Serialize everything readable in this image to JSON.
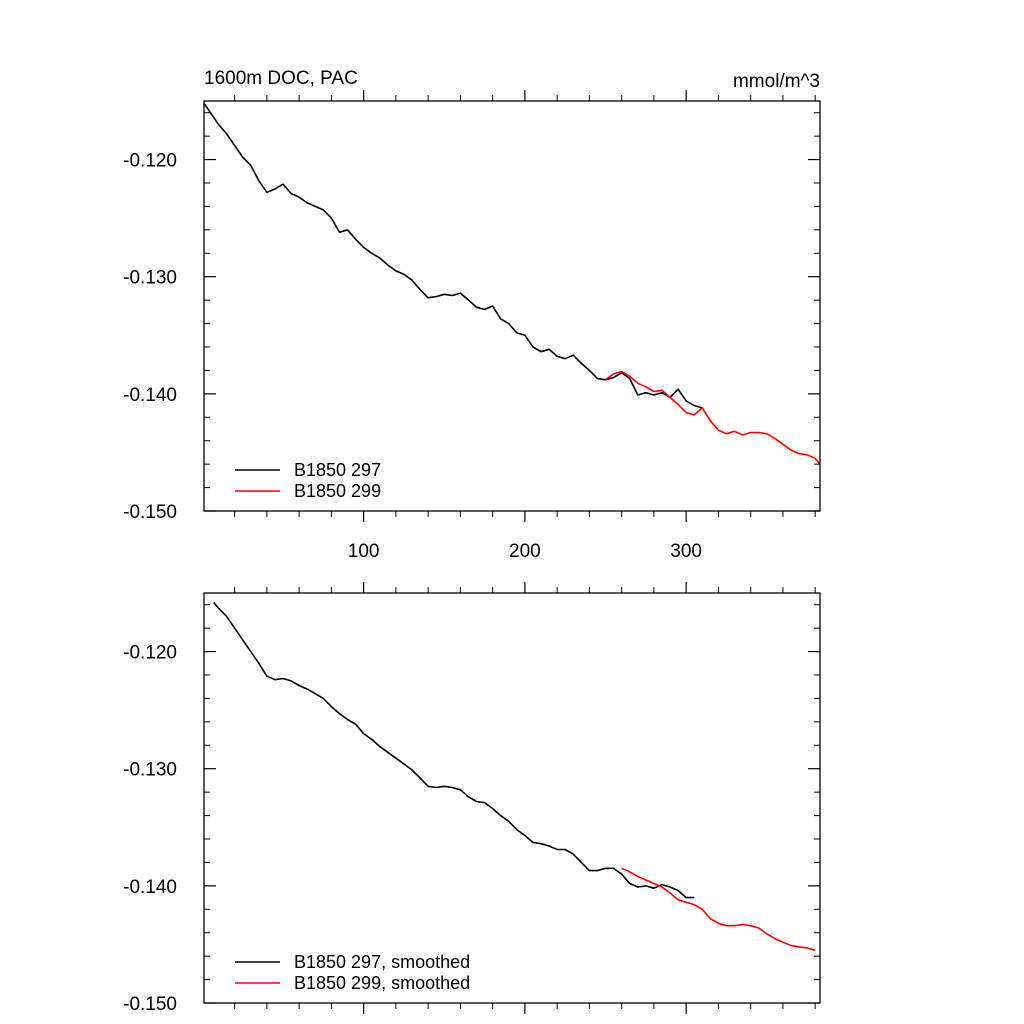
{
  "chart_data": [
    {
      "type": "line",
      "title": "1600m DOC, PAC",
      "units": "mmol/m^3",
      "xlim": [
        1,
        383
      ],
      "ylim": [
        -0.15,
        -0.115
      ],
      "x_tick_labels": [
        "100",
        "200",
        "300"
      ],
      "x_ticks": [
        100,
        200,
        300
      ],
      "y_ticks": [
        -0.12,
        -0.13,
        -0.14,
        -0.15
      ],
      "y_tick_labels": [
        "-0.120",
        "-0.130",
        "-0.140",
        "-0.150"
      ],
      "legend_position": "bottom-left",
      "series": [
        {
          "name": "B1850 297",
          "color": "#000000",
          "x": [
            1,
            5,
            10,
            15,
            20,
            25,
            30,
            35,
            40,
            45,
            50,
            55,
            60,
            65,
            70,
            75,
            80,
            85,
            90,
            95,
            100,
            105,
            110,
            115,
            120,
            125,
            130,
            135,
            140,
            145,
            150,
            155,
            160,
            165,
            170,
            175,
            180,
            185,
            190,
            195,
            200,
            205,
            210,
            215,
            220,
            225,
            230,
            235,
            240,
            245,
            250,
            255,
            260,
            265,
            270,
            275,
            280,
            285,
            290,
            295,
            300,
            305,
            310
          ],
          "y": [
            -0.1152,
            -0.116,
            -0.117,
            -0.1178,
            -0.1188,
            -0.1198,
            -0.1205,
            -0.1218,
            -0.1228,
            -0.1225,
            -0.1221,
            -0.1229,
            -0.1232,
            -0.1237,
            -0.124,
            -0.1243,
            -0.125,
            -0.1262,
            -0.126,
            -0.1268,
            -0.1275,
            -0.128,
            -0.1284,
            -0.129,
            -0.1295,
            -0.1298,
            -0.1303,
            -0.1311,
            -0.1318,
            -0.1317,
            -0.1315,
            -0.1316,
            -0.1314,
            -0.132,
            -0.1326,
            -0.1328,
            -0.1325,
            -0.1336,
            -0.134,
            -0.1348,
            -0.135,
            -0.136,
            -0.1364,
            -0.1362,
            -0.1368,
            -0.137,
            -0.1367,
            -0.1374,
            -0.138,
            -0.1387,
            -0.1388,
            -0.1386,
            -0.1382,
            -0.1387,
            -0.1401,
            -0.1399,
            -0.1401,
            -0.1399,
            -0.1403,
            -0.1396,
            -0.1406,
            -0.141,
            -0.1412
          ]
        },
        {
          "name": "B1850 299",
          "color": "#ff0000",
          "x": [
            250,
            255,
            260,
            265,
            270,
            275,
            280,
            285,
            290,
            295,
            300,
            305,
            310,
            315,
            320,
            325,
            330,
            335,
            340,
            345,
            350,
            355,
            360,
            365,
            370,
            375,
            380,
            383
          ],
          "y": [
            -0.1388,
            -0.1383,
            -0.1381,
            -0.1385,
            -0.1391,
            -0.1394,
            -0.1398,
            -0.1397,
            -0.1403,
            -0.1409,
            -0.1416,
            -0.1418,
            -0.1412,
            -0.1423,
            -0.1431,
            -0.1434,
            -0.1432,
            -0.1435,
            -0.1433,
            -0.1433,
            -0.1434,
            -0.1438,
            -0.1443,
            -0.1448,
            -0.1451,
            -0.1452,
            -0.1455,
            -0.146
          ]
        }
      ]
    },
    {
      "type": "line",
      "title": "",
      "xlim": [
        1,
        383
      ],
      "ylim": [
        -0.15,
        -0.115
      ],
      "x_ticks": [
        100,
        200,
        300
      ],
      "y_ticks": [
        -0.12,
        -0.13,
        -0.14,
        -0.15
      ],
      "y_tick_labels": [
        "-0.120",
        "-0.130",
        "-0.140",
        "-0.150"
      ],
      "legend_position": "bottom-left",
      "series": [
        {
          "name": "B1850 297, smoothed",
          "color": "#000000",
          "x": [
            7,
            10,
            15,
            20,
            25,
            30,
            35,
            40,
            45,
            50,
            55,
            60,
            65,
            70,
            75,
            80,
            85,
            90,
            95,
            100,
            105,
            110,
            115,
            120,
            125,
            130,
            135,
            140,
            145,
            150,
            155,
            160,
            165,
            170,
            175,
            180,
            185,
            190,
            195,
            200,
            205,
            210,
            215,
            220,
            225,
            230,
            235,
            240,
            245,
            250,
            255,
            260,
            265,
            270,
            275,
            280,
            285,
            290,
            295,
            300,
            305
          ],
          "y": [
            -0.1158,
            -0.1163,
            -0.117,
            -0.118,
            -0.119,
            -0.12,
            -0.121,
            -0.1221,
            -0.1224,
            -0.1223,
            -0.1225,
            -0.1229,
            -0.1232,
            -0.1236,
            -0.124,
            -0.1247,
            -0.1253,
            -0.1258,
            -0.1262,
            -0.127,
            -0.1275,
            -0.1281,
            -0.1286,
            -0.1291,
            -0.1296,
            -0.1301,
            -0.1308,
            -0.1315,
            -0.1316,
            -0.1315,
            -0.1316,
            -0.1318,
            -0.1324,
            -0.1328,
            -0.1329,
            -0.1334,
            -0.134,
            -0.1345,
            -0.1352,
            -0.1357,
            -0.1363,
            -0.1364,
            -0.1366,
            -0.1369,
            -0.1369,
            -0.1373,
            -0.138,
            -0.1387,
            -0.1387,
            -0.1385,
            -0.1385,
            -0.139,
            -0.1398,
            -0.1401,
            -0.14,
            -0.1402,
            -0.1399,
            -0.1401,
            -0.1404,
            -0.141,
            -0.141
          ]
        },
        {
          "name": "B1850 299, smoothed",
          "color": "#ff0000",
          "x": [
            260,
            265,
            270,
            275,
            280,
            285,
            290,
            295,
            300,
            305,
            310,
            315,
            320,
            325,
            330,
            335,
            340,
            345,
            350,
            355,
            360,
            365,
            370,
            375,
            380
          ],
          "y": [
            -0.1385,
            -0.1388,
            -0.1392,
            -0.1395,
            -0.1398,
            -0.1401,
            -0.1406,
            -0.1412,
            -0.1414,
            -0.1416,
            -0.142,
            -0.1428,
            -0.1432,
            -0.1434,
            -0.1434,
            -0.1433,
            -0.1434,
            -0.1436,
            -0.1441,
            -0.1445,
            -0.1448,
            -0.1451,
            -0.1452,
            -0.1453,
            -0.1455
          ]
        }
      ]
    }
  ]
}
